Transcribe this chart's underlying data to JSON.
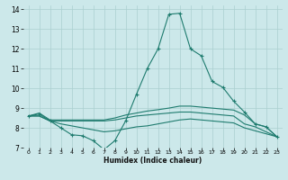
{
  "xlabel": "Humidex (Indice chaleur)",
  "xlim": [
    -0.5,
    23.5
  ],
  "ylim": [
    7,
    14.2
  ],
  "yticks": [
    7,
    8,
    9,
    10,
    11,
    12,
    13,
    14
  ],
  "xticks": [
    0,
    1,
    2,
    3,
    4,
    5,
    6,
    7,
    8,
    9,
    10,
    11,
    12,
    13,
    14,
    15,
    16,
    17,
    18,
    19,
    20,
    21,
    22,
    23
  ],
  "bg_color": "#cce8ea",
  "line_color": "#1e7b6e",
  "grid_color": "#aacfcf",
  "line1_x": [
    0,
    1,
    2,
    3,
    4,
    5,
    6,
    7,
    8,
    9,
    10,
    11,
    12,
    13,
    14,
    15,
    16,
    17,
    18,
    19,
    20,
    21,
    22,
    23
  ],
  "line1_y": [
    8.6,
    8.7,
    8.35,
    8.0,
    7.65,
    7.6,
    7.35,
    6.9,
    7.35,
    8.35,
    9.7,
    11.0,
    12.0,
    13.75,
    13.8,
    12.0,
    11.65,
    10.35,
    10.05,
    9.35,
    8.8,
    8.2,
    8.05,
    7.55
  ],
  "line2_x": [
    0,
    1,
    2,
    3,
    4,
    5,
    6,
    7,
    8,
    9,
    10,
    11,
    12,
    13,
    14,
    15,
    16,
    17,
    18,
    19,
    20,
    21,
    22,
    23
  ],
  "line2_y": [
    8.6,
    8.75,
    8.4,
    8.4,
    8.4,
    8.4,
    8.4,
    8.4,
    8.5,
    8.65,
    8.75,
    8.85,
    8.92,
    9.0,
    9.1,
    9.1,
    9.05,
    9.0,
    8.95,
    8.9,
    8.65,
    8.2,
    8.05,
    7.55
  ],
  "line3_x": [
    0,
    1,
    2,
    3,
    4,
    5,
    6,
    7,
    8,
    9,
    10,
    11,
    12,
    13,
    14,
    15,
    16,
    17,
    18,
    19,
    20,
    21,
    22,
    23
  ],
  "line3_y": [
    8.6,
    8.6,
    8.35,
    8.35,
    8.35,
    8.35,
    8.35,
    8.35,
    8.4,
    8.5,
    8.6,
    8.65,
    8.7,
    8.75,
    8.8,
    8.8,
    8.75,
    8.7,
    8.65,
    8.6,
    8.2,
    8.05,
    7.8,
    7.55
  ],
  "line4_x": [
    0,
    1,
    2,
    3,
    4,
    5,
    6,
    7,
    8,
    9,
    10,
    11,
    12,
    13,
    14,
    15,
    16,
    17,
    18,
    19,
    20,
    21,
    22,
    23
  ],
  "line4_y": [
    8.6,
    8.6,
    8.35,
    8.2,
    8.1,
    8.0,
    7.9,
    7.8,
    7.85,
    7.95,
    8.05,
    8.1,
    8.2,
    8.3,
    8.4,
    8.45,
    8.4,
    8.35,
    8.3,
    8.25,
    8.0,
    7.85,
    7.7,
    7.55
  ]
}
